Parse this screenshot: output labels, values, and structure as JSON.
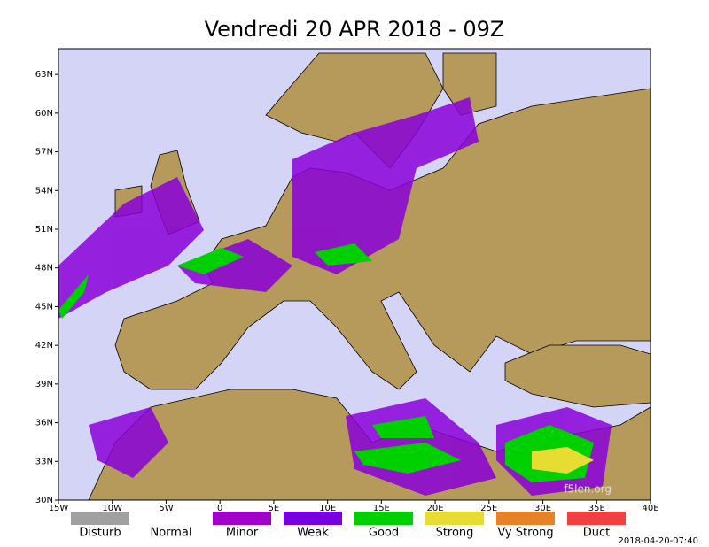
{
  "map": {
    "title": "Vendredi 20 APR 2018 - 09Z",
    "lat_ticks": [
      {
        "value": 30,
        "label": "30N"
      },
      {
        "value": 33,
        "label": "33N"
      },
      {
        "value": 36,
        "label": "36N"
      },
      {
        "value": 39,
        "label": "39N"
      },
      {
        "value": 42,
        "label": "42N"
      },
      {
        "value": 45,
        "label": "45N"
      },
      {
        "value": 48,
        "label": "48N"
      },
      {
        "value": 51,
        "label": "51N"
      },
      {
        "value": 54,
        "label": "54N"
      },
      {
        "value": 57,
        "label": "57N"
      },
      {
        "value": 60,
        "label": "60N"
      },
      {
        "value": 63,
        "label": "63N"
      }
    ],
    "lon_ticks": [
      {
        "value": -15,
        "label": "15W"
      },
      {
        "value": -10,
        "label": "10W"
      },
      {
        "value": -5,
        "label": "5W"
      },
      {
        "value": 0,
        "label": "0"
      },
      {
        "value": 5,
        "label": "5E"
      },
      {
        "value": 10,
        "label": "10E"
      },
      {
        "value": 15,
        "label": "15E"
      },
      {
        "value": 20,
        "label": "20E"
      },
      {
        "value": 25,
        "label": "25E"
      },
      {
        "value": 30,
        "label": "30E"
      },
      {
        "value": 35,
        "label": "35E"
      },
      {
        "value": 40,
        "label": "40E"
      }
    ],
    "latlim": [
      30,
      65
    ],
    "lonlim": [
      -15,
      40
    ],
    "legend": [
      {
        "label": "Disturb",
        "color": "#a0a0a0"
      },
      {
        "label": "Normal",
        "color": null
      },
      {
        "label": "Minor",
        "color": "#a000c8"
      },
      {
        "label": "Weak",
        "color": "#7800e0"
      },
      {
        "label": "Good",
        "color": "#00d000"
      },
      {
        "label": "Strong",
        "color": "#e6dc32"
      },
      {
        "label": "Vy Strong",
        "color": "#e68228"
      },
      {
        "label": "Duct",
        "color": "#f04040"
      }
    ],
    "watermark": "f5len.org",
    "timestamp": "2018-04-20-07:40"
  }
}
